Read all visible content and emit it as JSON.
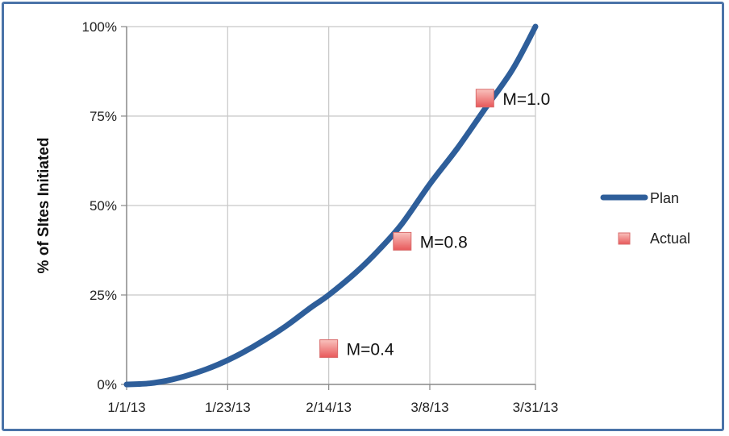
{
  "chart_data": {
    "type": "line",
    "title": "",
    "xlabel": "",
    "ylabel": "% of SItes Initiated",
    "x_ticks": [
      "1/1/13",
      "1/23/13",
      "2/14/13",
      "3/8/13",
      "3/31/13"
    ],
    "x_range": [
      "2013-01-01",
      "2013-03-31"
    ],
    "y_ticks": [
      "0%",
      "25%",
      "50%",
      "75%",
      "100%"
    ],
    "ylim": [
      0,
      100
    ],
    "grid": true,
    "legend_position": "right",
    "series": [
      {
        "name": "Plan",
        "kind": "line",
        "color": "#2e5e9a",
        "points": [
          {
            "x": "2013-01-01",
            "y": 0
          },
          {
            "x": "2013-01-06",
            "y": 0.3
          },
          {
            "x": "2013-01-11",
            "y": 1.4
          },
          {
            "x": "2013-01-16",
            "y": 3.2
          },
          {
            "x": "2013-01-21",
            "y": 5.6
          },
          {
            "x": "2013-01-26",
            "y": 8.7
          },
          {
            "x": "2013-01-31",
            "y": 12.4
          },
          {
            "x": "2013-02-05",
            "y": 16.6
          },
          {
            "x": "2013-02-10",
            "y": 21.4
          },
          {
            "x": "2013-02-14",
            "y": 25
          },
          {
            "x": "2013-02-20",
            "y": 31.4
          },
          {
            "x": "2013-02-25",
            "y": 37.7
          },
          {
            "x": "2013-03-02",
            "y": 45
          },
          {
            "x": "2013-03-08",
            "y": 56
          },
          {
            "x": "2013-03-14",
            "y": 66
          },
          {
            "x": "2013-03-20",
            "y": 77
          },
          {
            "x": "2013-03-26",
            "y": 88
          },
          {
            "x": "2013-03-31",
            "y": 100
          }
        ]
      },
      {
        "name": "Actual",
        "kind": "marker",
        "color": "#f08080",
        "points": [
          {
            "x": "2013-02-14",
            "y": 10,
            "label": "M=0.4"
          },
          {
            "x": "2013-03-02",
            "y": 40,
            "label": "M=0.8"
          },
          {
            "x": "2013-03-20",
            "y": 80,
            "label": "M=1.0"
          }
        ]
      }
    ]
  }
}
